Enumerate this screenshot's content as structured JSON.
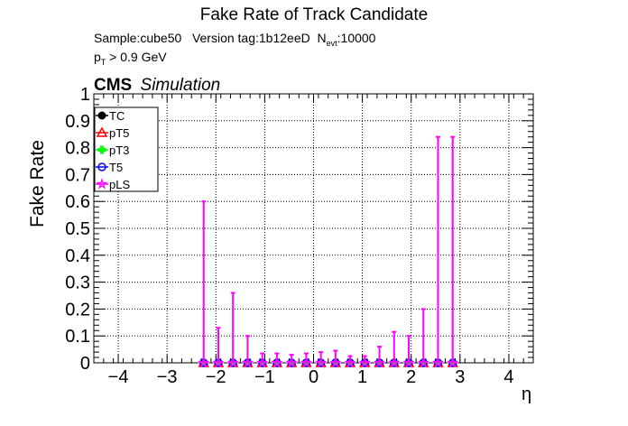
{
  "title": "Fake Rate of Track Candidate",
  "info": {
    "sample_line": "Sample:cube50   Version tag:1b12eeD  N",
    "nevt_sub": "evt",
    "nevt_value": ":10000",
    "pt_p": "p",
    "pt_sub": "T",
    "pt_rest": " > 0.9 GeV"
  },
  "cms": {
    "label": "CMS",
    "sublabel": "Simulation"
  },
  "chart_data": {
    "type": "scatter",
    "title": "Fake Rate of Track Candidate",
    "xlabel": "η",
    "ylabel": "Fake Rate",
    "xlim": [
      -4.5,
      4.5
    ],
    "ylim": [
      0,
      1
    ],
    "xticks": [
      "−4",
      "−3",
      "−2",
      "−1",
      "0",
      "1",
      "2",
      "3",
      "4"
    ],
    "yticks": [
      "0",
      "0.1",
      "0.2",
      "0.3",
      "0.4",
      "0.5",
      "0.6",
      "0.7",
      "0.8",
      "0.9",
      "1"
    ],
    "grid": true,
    "legend_position": "top-left",
    "x": [
      -2.25,
      -1.95,
      -1.65,
      -1.35,
      -1.05,
      -0.75,
      -0.45,
      -0.15,
      0.15,
      0.45,
      0.75,
      1.05,
      1.35,
      1.65,
      1.95,
      2.25,
      2.55,
      2.85
    ],
    "series": [
      {
        "name": "TC",
        "color": "#000000",
        "marker": "filled-circle",
        "values": [
          0,
          0,
          0,
          0,
          0,
          0,
          0,
          0,
          0,
          0,
          0,
          0,
          0,
          0,
          0,
          0,
          0,
          0
        ],
        "errors": [
          0,
          0,
          0,
          0,
          0,
          0,
          0,
          0,
          0,
          0,
          0,
          0,
          0,
          0,
          0,
          0,
          0,
          0
        ]
      },
      {
        "name": "pT5",
        "color": "#ff0000",
        "marker": "open-triangle",
        "values": [
          0,
          0,
          0,
          0,
          0,
          0,
          0,
          0,
          0,
          0,
          0,
          0,
          0,
          0,
          0,
          0,
          0,
          0
        ],
        "errors": [
          0,
          0,
          0,
          0,
          0,
          0,
          0,
          0,
          0,
          0,
          0,
          0,
          0,
          0,
          0,
          0,
          0,
          0
        ]
      },
      {
        "name": "pT3",
        "color": "#00ff00",
        "marker": "filled-cross",
        "values": [
          0,
          0,
          0,
          0,
          0,
          0,
          0,
          0,
          0,
          0,
          0,
          0,
          0,
          0,
          0,
          0,
          0,
          0
        ],
        "errors": [
          0,
          0,
          0,
          0,
          0,
          0,
          0,
          0,
          0,
          0,
          0,
          0,
          0,
          0,
          0,
          0,
          0,
          0
        ]
      },
      {
        "name": "T5",
        "color": "#0000ff",
        "marker": "open-circle",
        "values": [
          0,
          0,
          0,
          0,
          0,
          0,
          0,
          0,
          0,
          0,
          0,
          0,
          0,
          0,
          0,
          0,
          0,
          0
        ],
        "errors": [
          0,
          0,
          0,
          0,
          0,
          0,
          0,
          0,
          0,
          0,
          0,
          0,
          0,
          0,
          0,
          0,
          0,
          0
        ]
      },
      {
        "name": "pLS",
        "color": "#ff00ff",
        "marker": "open-star",
        "values": [
          0,
          0,
          0,
          0,
          0,
          0,
          0,
          0,
          0,
          0,
          0,
          0,
          0,
          0,
          0,
          0,
          0,
          0
        ],
        "errors": [
          0.6,
          0.13,
          0.26,
          0.1,
          0.035,
          0.035,
          0.03,
          0.035,
          0.04,
          0.045,
          0.025,
          0.025,
          0.06,
          0.115,
          0.1,
          0.2,
          0.84,
          0.84
        ]
      }
    ]
  }
}
